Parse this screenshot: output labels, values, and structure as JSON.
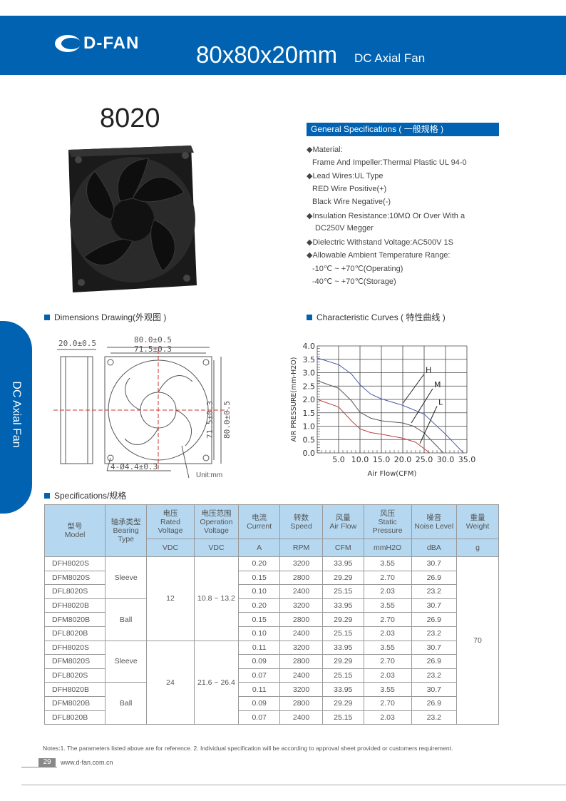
{
  "header": {
    "brand": "D-FAN",
    "title": "80x80x20mm",
    "subtitle": "DC Axial Fan"
  },
  "side_tab": "DC Axial Fan",
  "model": "8020",
  "general": {
    "heading": "General Specifications ( 一般规格 )",
    "lines": [
      "◆Material:",
      "Frame And Impeller:Thermal Plastic UL 94-0",
      "◆Lead Wires:UL Type",
      "RED Wire Positive(+)",
      "Black Wire Negative(-)",
      "◆Insulation Resistance:10MΩ  Or Over With a",
      "DC250V Megger",
      "◆Dielectric Withstand Voltage:AC500V 1S",
      "◆Allowable Ambient Temperature Range:",
      "-10℃ ~ +70℃(Operating)",
      "-40℃ ~ +70℃(Storage)"
    ]
  },
  "dimensions": {
    "heading": "Dimensions Drawing(外观图 )",
    "thickness": "20.0±0.5",
    "outer": "80.0±0.5",
    "hole_spacing": "71.5±0.3",
    "outer_v": "80.0±0.5",
    "hole_spacing_v": "71.5±0.3",
    "holes": "4-Ø4.4±0.3",
    "unit": "Unit:mm"
  },
  "curves": {
    "heading": "Characteristic Curves ( 特性曲线 )"
  },
  "chart_data": {
    "type": "line",
    "xlabel": "Air Flow(CFM)",
    "ylabel": "AIR PRESSURE(mm-H2O)",
    "xlim": [
      0,
      35
    ],
    "ylim": [
      0,
      4
    ],
    "xticks": [
      "5.0",
      "10.0",
      "15.0",
      "20.0",
      "25.0",
      "30.0",
      "35.0"
    ],
    "yticks": [
      "0.0",
      "0.5",
      "1.0",
      "1.5",
      "2.0",
      "2.5",
      "3.0",
      "3.5",
      "4.0"
    ],
    "grid": true,
    "series": [
      {
        "name": "H",
        "color": "#4a5aa8",
        "points": [
          [
            0,
            3.55
          ],
          [
            5,
            3.3
          ],
          [
            8,
            2.95
          ],
          [
            10,
            2.55
          ],
          [
            12.5,
            2.2
          ],
          [
            15,
            2.02
          ],
          [
            20,
            1.78
          ],
          [
            25,
            1.45
          ],
          [
            30,
            0.7
          ],
          [
            34.2,
            0
          ]
        ]
      },
      {
        "name": "M",
        "color": "#555555",
        "points": [
          [
            0,
            2.7
          ],
          [
            5,
            2.42
          ],
          [
            8,
            1.95
          ],
          [
            10,
            1.52
          ],
          [
            12.5,
            1.3
          ],
          [
            15,
            1.2
          ],
          [
            20,
            1.12
          ],
          [
            22.5,
            1.0
          ],
          [
            25,
            0.75
          ],
          [
            29.5,
            0
          ]
        ]
      },
      {
        "name": "L",
        "color": "#c04040",
        "points": [
          [
            0,
            2.0
          ],
          [
            5,
            1.72
          ],
          [
            8,
            1.2
          ],
          [
            10,
            0.9
          ],
          [
            12.5,
            0.76
          ],
          [
            15,
            0.7
          ],
          [
            20,
            0.55
          ],
          [
            23,
            0.4
          ],
          [
            26.3,
            0
          ]
        ]
      }
    ]
  },
  "specs": {
    "heading": "Specifications/规格",
    "columns": [
      {
        "cn": "型号",
        "en": "Model"
      },
      {
        "cn": "轴承类型",
        "en": "Bearing Type"
      },
      {
        "cn": "电压",
        "en": "Rated Voltage",
        "unit": "VDC"
      },
      {
        "cn": "电压范围",
        "en": "Operation Voltage",
        "unit": "VDC"
      },
      {
        "cn": "电流",
        "en": "Current",
        "unit": "A"
      },
      {
        "cn": "转数",
        "en": "Speed",
        "unit": "RPM"
      },
      {
        "cn": "风量",
        "en": "Air Flow",
        "unit": "CFM"
      },
      {
        "cn": "风压",
        "en": "Static Pressure",
        "unit": "mmH2O"
      },
      {
        "cn": "噪音",
        "en": "Noise Level",
        "unit": "dBA"
      },
      {
        "cn": "重量",
        "en": "Weight",
        "unit": "g"
      }
    ],
    "rows": [
      [
        "DFH8020S",
        "0.20",
        "3200",
        "33.95",
        "3.55",
        "30.7"
      ],
      [
        "DFM8020S",
        "0.15",
        "2800",
        "29.29",
        "2.70",
        "26.9"
      ],
      [
        "DFL8020S",
        "0.10",
        "2400",
        "25.15",
        "2.03",
        "23.2"
      ],
      [
        "DFH8020B",
        "0.20",
        "3200",
        "33.95",
        "3.55",
        "30.7"
      ],
      [
        "DFM8020B",
        "0.15",
        "2800",
        "29.29",
        "2.70",
        "26.9"
      ],
      [
        "DFL8020B",
        "0.10",
        "2400",
        "25.15",
        "2.03",
        "23.2"
      ],
      [
        "DFH8020S",
        "0.11",
        "3200",
        "33.95",
        "3.55",
        "30.7"
      ],
      [
        "DFM8020S",
        "0.09",
        "2800",
        "29.29",
        "2.70",
        "26.9"
      ],
      [
        "DFL8020S",
        "0.07",
        "2400",
        "25.15",
        "2.03",
        "23.2"
      ],
      [
        "DFH8020B",
        "0.11",
        "3200",
        "33.95",
        "3.55",
        "30.7"
      ],
      [
        "DFM8020B",
        "0.09",
        "2800",
        "29.29",
        "2.70",
        "26.9"
      ],
      [
        "DFL8020B",
        "0.07",
        "2400",
        "25.15",
        "2.03",
        "23.2"
      ]
    ],
    "bearing": [
      "Sleeve",
      "Ball",
      "Sleeve",
      "Ball"
    ],
    "rated": [
      "12",
      "24"
    ],
    "range": [
      "10.8 ~ 13.2",
      "21.6 ~ 26.4"
    ],
    "weight": "70"
  },
  "notes": "Notes:1. The parameters listed above are for reference.   2. Individual specification will be according to approval sheet provided or customers requirement.",
  "footer": {
    "page": "29",
    "url": "www.d-fan.com.cn"
  }
}
